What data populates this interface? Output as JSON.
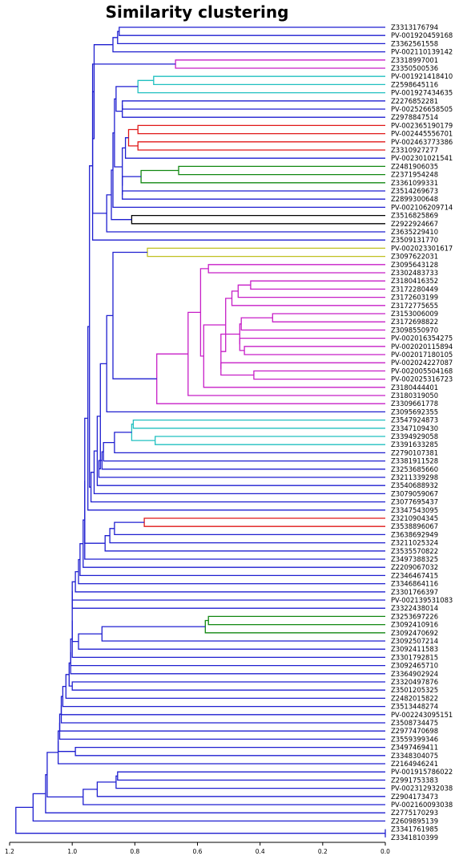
{
  "chart_data": {
    "type": "dendrogram",
    "title": "Similarity clustering",
    "orientation": "left",
    "xlim": [
      1.2,
      0.0
    ],
    "x_ticks": [
      "1.2",
      "1.0",
      "0.8",
      "0.6",
      "0.4",
      "0.2",
      "0.0"
    ],
    "colors": {
      "C0": "#1f1fd0",
      "C1": "#c71fc7",
      "C2": "#20c0c0",
      "C3": "#e01818",
      "C4": "#118811",
      "C5": "#000000",
      "C6": "#c0c020"
    },
    "leaves": [
      "Z3313176794",
      "PV-001920459168",
      "Z3362561558",
      "PV-002110139142",
      "Z3318997001",
      "Z3350500536",
      "PV-001921418410",
      "Z2598645116",
      "PV-001927434635",
      "Z2276852281",
      "PV-002526658505",
      "Z2978847514",
      "PV-002365190179",
      "PV-002445556701",
      "PV-002463773386",
      "Z3310927277",
      "PV-002301021541",
      "Z2481906035",
      "Z2371954248",
      "Z3361099331",
      "Z3514269673",
      "Z2899300648",
      "PV-002106209714",
      "Z3516825869",
      "Z2922924667",
      "Z3635229410",
      "Z3509131770",
      "PV-002023301617",
      "Z3097622031",
      "Z3095643128",
      "Z3302483733",
      "Z3180416352",
      "Z3172280449",
      "Z3172603199",
      "Z3172775655",
      "Z3153006009",
      "Z3172698822",
      "Z3098550970",
      "PV-002016354275",
      "PV-002020115894",
      "PV-002017180105",
      "PV-002024227087",
      "PV-002005504168",
      "PV-002025316723",
      "Z3180444401",
      "Z3180319050",
      "Z3309661778",
      "Z3095692355",
      "Z3547924873",
      "Z3347109430",
      "Z3394929058",
      "Z3391633285",
      "Z2790107381",
      "Z3381911528",
      "Z3253685660",
      "Z3211339298",
      "Z3540688932",
      "Z3079059067",
      "Z3077695437",
      "Z3347543095",
      "Z3210904345",
      "Z3538896067",
      "Z3638692949",
      "Z3211025324",
      "Z3535570822",
      "Z3497388325",
      "Z2209067032",
      "Z2346467415",
      "Z3346864116",
      "Z3301766397",
      "PV-002139531083",
      "Z3322438014",
      "Z3253697226",
      "Z3092410916",
      "Z3092470692",
      "Z3092507214",
      "Z3092411583",
      "Z3301792815",
      "Z3092465710",
      "Z3364902924",
      "Z3320497876",
      "Z3501205325",
      "Z2482015822",
      "Z3513448274",
      "PV-002243095151",
      "Z3508734475",
      "Z2977470698",
      "Z3559399346",
      "Z3497469411",
      "Z3348304075",
      "Z2164946241",
      "PV-001915786022",
      "Z2991753383",
      "PV-002312932038",
      "Z2904173473",
      "PV-002160093038",
      "Z2775170293",
      "Z2609895139",
      "Z3341761985",
      "Z3341810399"
    ],
    "links": [
      {
        "a": 0,
        "b": 1,
        "h": 0.85,
        "c": "C0"
      },
      {
        "a": "L0",
        "b": 2,
        "h": 0.855,
        "c": "C0"
      },
      {
        "a": "L1",
        "b": 3,
        "h": 0.87,
        "c": "C0"
      },
      {
        "a": 4,
        "b": 5,
        "h": 0.67,
        "c": "C1"
      },
      {
        "a": 6,
        "b": 7,
        "h": 0.74,
        "c": "C2"
      },
      {
        "a": "L4",
        "b": 8,
        "h": 0.79,
        "c": "C2"
      },
      {
        "a": 9,
        "b": 10,
        "h": 0.84,
        "c": "C0"
      },
      {
        "a": "L6",
        "b": 11,
        "h": 0.84,
        "c": "C0"
      },
      {
        "a": "L5",
        "b": "L7",
        "h": 0.86,
        "c": "C0"
      },
      {
        "a": 12,
        "b": 13,
        "h": 0.79,
        "c": "C3"
      },
      {
        "a": 14,
        "b": 15,
        "h": 0.79,
        "c": "C3"
      },
      {
        "a": "L9",
        "b": "L10",
        "h": 0.82,
        "c": "C3"
      },
      {
        "a": "L11",
        "b": 16,
        "h": 0.83,
        "c": "C0"
      },
      {
        "a": 17,
        "b": 18,
        "h": 0.66,
        "c": "C4"
      },
      {
        "a": "L13",
        "b": 19,
        "h": 0.78,
        "c": "C4"
      },
      {
        "a": 20,
        "b": 21,
        "h": 0.84,
        "c": "C0"
      },
      {
        "a": "L14",
        "b": "L15",
        "h": 0.84,
        "c": "C0"
      },
      {
        "a": "L12",
        "b": "L16",
        "h": 0.84,
        "c": "C0"
      },
      {
        "a": "L8",
        "b": "L17",
        "h": 0.865,
        "c": "C0"
      },
      {
        "a": "L18",
        "b": 22,
        "h": 0.87,
        "c": "C0"
      },
      {
        "a": 23,
        "b": 24,
        "h": 0.81,
        "c": "C5"
      },
      {
        "a": "L19",
        "b": "L20",
        "h": 0.875,
        "c": "C0"
      },
      {
        "a": "L21",
        "b": 25,
        "h": 0.89,
        "c": "C0"
      },
      {
        "a": "L3",
        "b": "L22",
        "h": 0.935,
        "c": "C0"
      },
      {
        "a": "L2",
        "b": "L23",
        "h": 0.93,
        "c": "C0"
      },
      {
        "a": "L24",
        "b": 26,
        "h": 0.935,
        "c": "C0"
      },
      {
        "a": 27,
        "b": 28,
        "h": 0.76,
        "c": "C6"
      },
      {
        "a": 29,
        "b": 30,
        "h": 0.565,
        "c": "C1"
      },
      {
        "a": 31,
        "b": 32,
        "h": 0.43,
        "c": "C1"
      },
      {
        "a": "L28",
        "b": 33,
        "h": 0.47,
        "c": "C1"
      },
      {
        "a": "L29",
        "b": 34,
        "h": 0.49,
        "c": "C1"
      },
      {
        "a": 35,
        "b": 36,
        "h": 0.36,
        "c": "C1"
      },
      {
        "a": "L31",
        "b": 37,
        "h": 0.46,
        "c": "C1"
      },
      {
        "a": 39,
        "b": 40,
        "h": 0.45,
        "c": "C1"
      },
      {
        "a": 38,
        "b": "L33",
        "h": 0.465,
        "c": "C1"
      },
      {
        "a": "L32",
        "b": "L34",
        "h": 0.465,
        "c": "C1"
      },
      {
        "a": 42,
        "b": 43,
        "h": 0.42,
        "c": "C1"
      },
      {
        "a": 41,
        "b": "L36",
        "h": 0.525,
        "c": "C1"
      },
      {
        "a": "L35",
        "b": "L37",
        "h": 0.525,
        "c": "C1"
      },
      {
        "a": "L30",
        "b": "L38",
        "h": 0.51,
        "c": "C1"
      },
      {
        "a": "L39",
        "b": 44,
        "h": 0.58,
        "c": "C1"
      },
      {
        "a": "L27",
        "b": "L40",
        "h": 0.59,
        "c": "C1"
      },
      {
        "a": "L41",
        "b": 45,
        "h": 0.63,
        "c": "C1"
      },
      {
        "a": "L42",
        "b": 46,
        "h": 0.73,
        "c": "C1"
      },
      {
        "a": "L26",
        "b": "L43",
        "h": 0.87,
        "c": "C0"
      },
      {
        "a": "L44",
        "b": 47,
        "h": 0.89,
        "c": "C0"
      },
      {
        "a": 48,
        "b": 49,
        "h": 0.805,
        "c": "C2"
      },
      {
        "a": 50,
        "b": 51,
        "h": 0.735,
        "c": "C2"
      },
      {
        "a": "L46",
        "b": "L47",
        "h": 0.81,
        "c": "C2"
      },
      {
        "a": "L48",
        "b": 52,
        "h": 0.865,
        "c": "C0"
      },
      {
        "a": "L49",
        "b": 53,
        "h": 0.9,
        "c": "C0"
      },
      {
        "a": "L50",
        "b": 54,
        "h": 0.905,
        "c": "C0"
      },
      {
        "a": "L51",
        "b": 55,
        "h": 0.915,
        "c": "C0"
      },
      {
        "a": "L45",
        "b": "L52",
        "h": 0.91,
        "c": "C0"
      },
      {
        "a": "L53",
        "b": 56,
        "h": 0.92,
        "c": "C0"
      },
      {
        "a": "L54",
        "b": 57,
        "h": 0.93,
        "c": "C0"
      },
      {
        "a": "L55",
        "b": 58,
        "h": 0.94,
        "c": "C0"
      },
      {
        "a": "L25",
        "b": "L56",
        "h": 0.945,
        "c": "C0"
      },
      {
        "a": "L57",
        "b": 59,
        "h": 0.95,
        "c": "C0"
      },
      {
        "a": 60,
        "b": 61,
        "h": 0.77,
        "c": "C3"
      },
      {
        "a": "L59",
        "b": 62,
        "h": 0.865,
        "c": "C0"
      },
      {
        "a": "L60",
        "b": 63,
        "h": 0.88,
        "c": "C0"
      },
      {
        "a": "L61",
        "b": 64,
        "h": 0.895,
        "c": "C0"
      },
      {
        "a": "L58",
        "b": "L62",
        "h": 0.96,
        "c": "C0"
      },
      {
        "a": "L63",
        "b": 65,
        "h": 0.96,
        "c": "C0"
      },
      {
        "a": "L64",
        "b": 66,
        "h": 0.965,
        "c": "C0"
      },
      {
        "a": "L65",
        "b": 67,
        "h": 0.975,
        "c": "C0"
      },
      {
        "a": "L66",
        "b": 68,
        "h": 0.98,
        "c": "C0"
      },
      {
        "a": "L67",
        "b": 69,
        "h": 0.99,
        "c": "C0"
      },
      {
        "a": "L68",
        "b": 70,
        "h": 1.0,
        "c": "C0"
      },
      {
        "a": "L69",
        "b": 71,
        "h": 1.0,
        "c": "C0"
      },
      {
        "a": 72,
        "b": 73,
        "h": 0.565,
        "c": "C4"
      },
      {
        "a": "L71",
        "b": 74,
        "h": 0.575,
        "c": "C4"
      },
      {
        "a": "L72",
        "b": 75,
        "h": 0.905,
        "c": "C0"
      },
      {
        "a": "L73",
        "b": 76,
        "h": 0.98,
        "c": "C0"
      },
      {
        "a": "L70",
        "b": "L74",
        "h": 1.0,
        "c": "C0"
      },
      {
        "a": "L75",
        "b": 77,
        "h": 1.0,
        "c": "C0"
      },
      {
        "a": "L76",
        "b": 78,
        "h": 1.005,
        "c": "C0"
      },
      {
        "a": "L77",
        "b": 79,
        "h": 1.005,
        "c": "C0"
      },
      {
        "a": 80,
        "b": 81,
        "h": 1.0,
        "c": "C0"
      },
      {
        "a": "L78",
        "b": "L79",
        "h": 1.01,
        "c": "C0"
      },
      {
        "a": "L80",
        "b": 82,
        "h": 1.02,
        "c": "C0"
      },
      {
        "a": "L81",
        "b": 83,
        "h": 1.03,
        "c": "C0"
      },
      {
        "a": "L82",
        "b": 84,
        "h": 1.035,
        "c": "C0"
      },
      {
        "a": "L83",
        "b": 85,
        "h": 1.035,
        "c": "C0"
      },
      {
        "a": "L84",
        "b": 86,
        "h": 1.04,
        "c": "C0"
      },
      {
        "a": "L85",
        "b": 87,
        "h": 1.04,
        "c": "C0"
      },
      {
        "a": 88,
        "b": 89,
        "h": 0.99,
        "c": "C0"
      },
      {
        "a": "L86",
        "b": "L87",
        "h": 1.045,
        "c": "C0"
      },
      {
        "a": "L88",
        "b": 90,
        "h": 1.045,
        "c": "C0"
      },
      {
        "a": 91,
        "b": 92,
        "h": 0.855,
        "c": "C0"
      },
      {
        "a": "L90",
        "b": 93,
        "h": 0.86,
        "c": "C0"
      },
      {
        "a": "L91",
        "b": 94,
        "h": 0.92,
        "c": "C0"
      },
      {
        "a": "L92",
        "b": 95,
        "h": 0.965,
        "c": "C0"
      },
      {
        "a": "L89",
        "b": "L93",
        "h": 1.08,
        "c": "C0"
      },
      {
        "a": "L94",
        "b": 96,
        "h": 1.085,
        "c": "C0"
      },
      {
        "a": "L95",
        "b": 97,
        "h": 1.125,
        "c": "C0"
      },
      {
        "a": 98,
        "b": 99,
        "h": 0.0,
        "c": "C0"
      },
      {
        "a": "L96",
        "b": "L97",
        "h": 1.18,
        "c": "C0"
      }
    ]
  }
}
